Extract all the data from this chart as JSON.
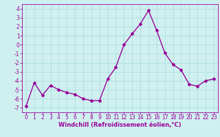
{
  "x": [
    0,
    1,
    2,
    3,
    4,
    5,
    6,
    7,
    8,
    9,
    10,
    11,
    12,
    13,
    14,
    15,
    16,
    17,
    18,
    19,
    20,
    21,
    22,
    23
  ],
  "y": [
    -6.8,
    -4.2,
    -5.6,
    -4.5,
    -5.0,
    -5.3,
    -5.5,
    -6.0,
    -6.2,
    -6.2,
    -3.8,
    -2.5,
    0.0,
    1.2,
    2.3,
    3.8,
    1.6,
    -0.9,
    -2.2,
    -2.8,
    -4.4,
    -4.6,
    -4.0,
    -3.8
  ],
  "line_color": "#990099",
  "marker": "D",
  "markersize": 2,
  "linewidth": 1.0,
  "bg_color": "#d0f0f0",
  "grid_color": "#aadddd",
  "xlabel": "Windchill (Refroidissement éolien,°C)",
  "xlabel_color": "#990099",
  "xlabel_fontsize": 6.0,
  "tick_color": "#990099",
  "tick_fontsize": 5.5,
  "ylim": [
    -7.5,
    4.5
  ],
  "xlim": [
    -0.5,
    23.5
  ],
  "yticks": [
    4,
    3,
    2,
    1,
    0,
    -1,
    -2,
    -3,
    -4,
    -5,
    -6,
    -7
  ],
  "xticks": [
    0,
    1,
    2,
    3,
    4,
    5,
    6,
    7,
    8,
    9,
    10,
    11,
    12,
    13,
    14,
    15,
    16,
    17,
    18,
    19,
    20,
    21,
    22,
    23
  ]
}
